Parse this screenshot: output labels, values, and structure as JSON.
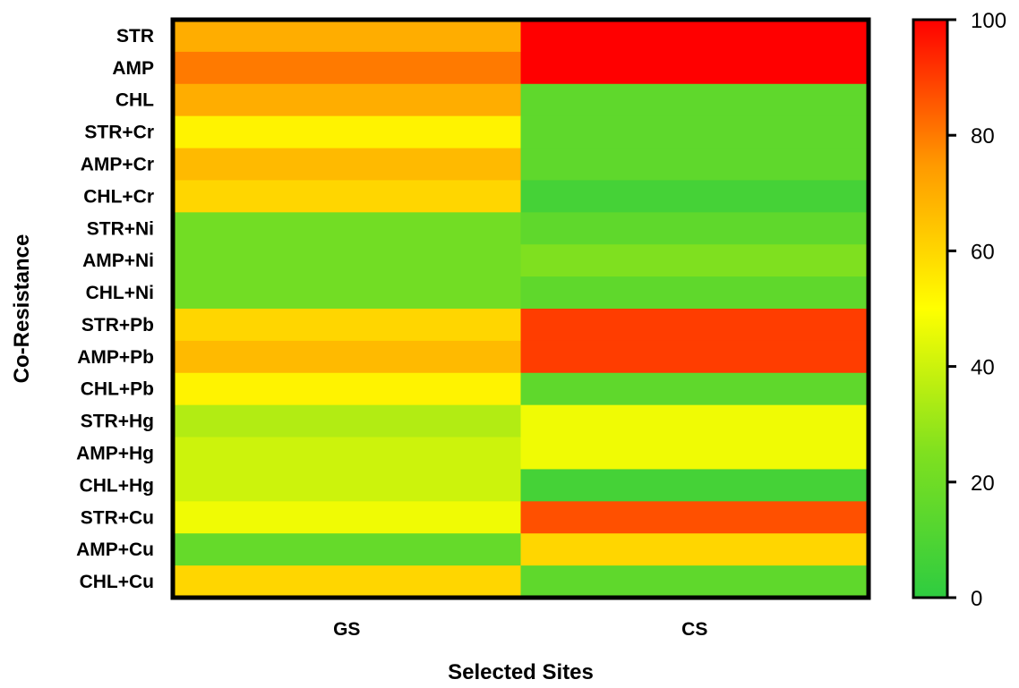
{
  "chart_data": {
    "type": "heatmap",
    "title": "",
    "xlabel": "Selected Sites",
    "ylabel": "Co-Resistance",
    "columns": [
      "GS",
      "CS"
    ],
    "rows": [
      "STR",
      "AMP",
      "CHL",
      "STR+Cr",
      "AMP+Cr",
      "CHL+Cr",
      "STR+Ni",
      "AMP+Ni",
      "CHL+Ni",
      "STR+Pb",
      "AMP+Pb",
      "CHL+Pb",
      "STR+Hg",
      "AMP+Hg",
      "CHL+Hg",
      "STR+Cu",
      "AMP+Cu",
      "CHL+Cu"
    ],
    "values": [
      [
        70,
        100
      ],
      [
        80,
        100
      ],
      [
        70,
        15
      ],
      [
        53,
        15
      ],
      [
        67,
        15
      ],
      [
        60,
        7
      ],
      [
        21,
        15
      ],
      [
        21,
        25
      ],
      [
        21,
        15
      ],
      [
        60,
        90
      ],
      [
        67,
        90
      ],
      [
        53,
        15
      ],
      [
        35,
        47
      ],
      [
        40,
        47
      ],
      [
        40,
        7
      ],
      [
        47,
        87
      ],
      [
        17,
        60
      ],
      [
        60,
        15
      ]
    ],
    "colorbar": {
      "min": 0,
      "max": 100,
      "ticks": [
        0,
        20,
        40,
        60,
        80,
        100
      ],
      "tick_labels": [
        "0",
        "20",
        "40",
        "60",
        "80",
        "100"
      ],
      "colors": [
        "#2ecc40",
        "#7fe01f",
        "#ffff00",
        "#ff9900",
        "#ff0000"
      ]
    }
  }
}
